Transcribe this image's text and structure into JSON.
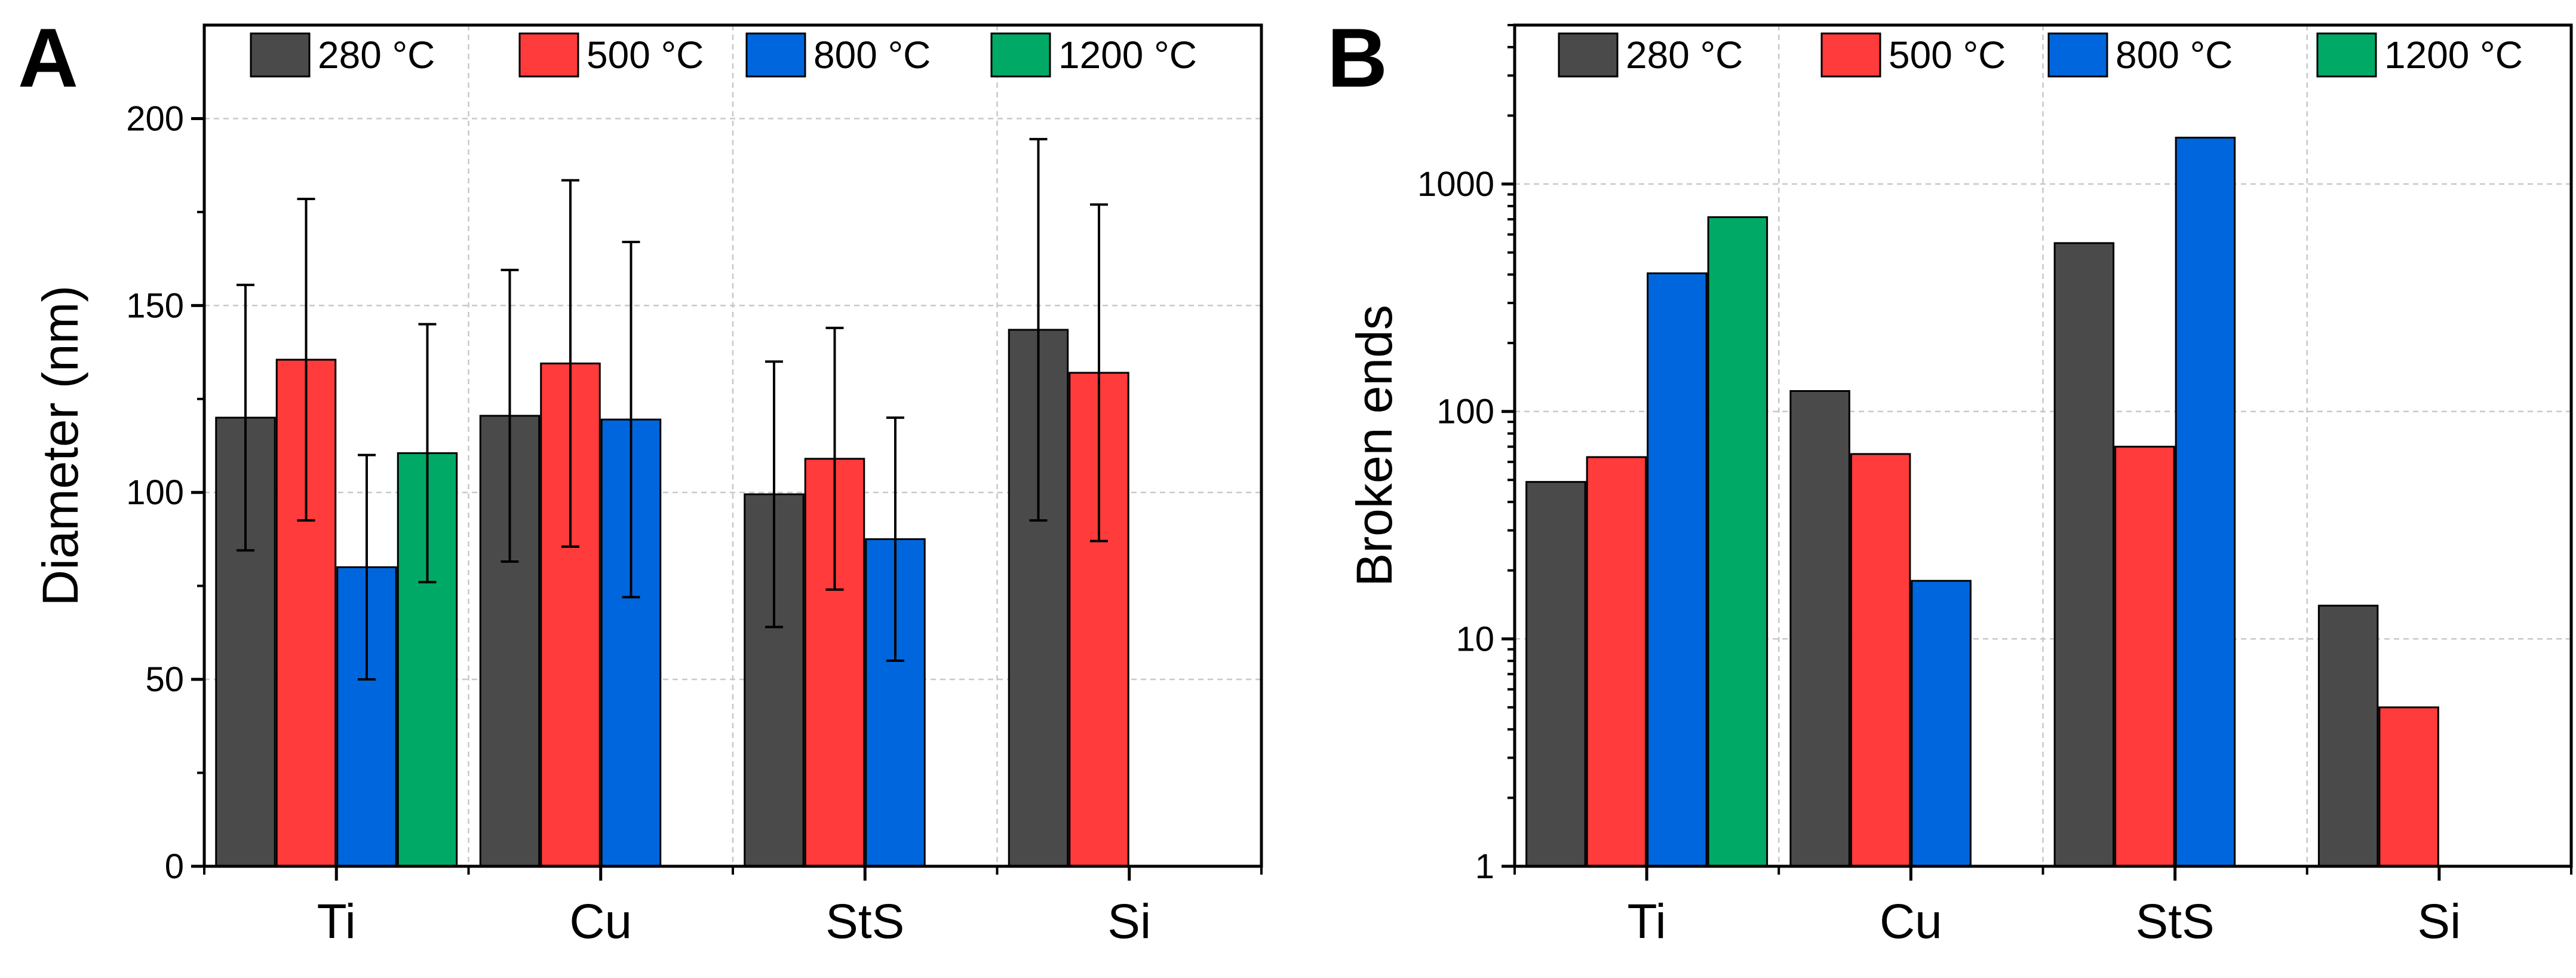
{
  "chart_data": [
    {
      "panel": "A",
      "type": "bar",
      "scale": "linear",
      "title": "",
      "xlabel": "",
      "ylabel": "Diameter (nm)",
      "ylim": [
        0,
        225
      ],
      "yticks": [
        0,
        50,
        100,
        150,
        200
      ],
      "grid": true,
      "legend_position": "top",
      "categories": [
        "Ti",
        "Cu",
        "StS",
        "Si"
      ],
      "series": [
        {
          "name": "280 °C",
          "color": "#4a4a4a",
          "values": [
            120,
            120.5,
            99.5,
            143.5
          ],
          "errors": [
            35.5,
            39,
            35.5,
            51
          ]
        },
        {
          "name": "500 °C",
          "color": "#ff3b3b",
          "values": [
            135.5,
            134.5,
            109,
            132
          ],
          "errors": [
            43,
            49,
            35,
            45
          ]
        },
        {
          "name": "800 °C",
          "color": "#0066dd",
          "values": [
            80,
            119.5,
            87.5,
            null
          ],
          "errors": [
            30,
            47.5,
            32.5,
            null
          ]
        },
        {
          "name": "1200 °C",
          "color": "#00aa66",
          "values": [
            110.5,
            null,
            null,
            null
          ],
          "errors": [
            34.5,
            null,
            null,
            null
          ]
        }
      ]
    },
    {
      "panel": "B",
      "type": "bar",
      "scale": "log",
      "title": "",
      "xlabel": "",
      "ylabel": "Broken ends",
      "ylim": [
        1,
        5000
      ],
      "yticks": [
        1,
        10,
        100,
        1000
      ],
      "yticklabels": [
        "1",
        "10",
        "100",
        "1000"
      ],
      "grid": true,
      "legend_position": "top",
      "categories": [
        "Ti",
        "Cu",
        "StS",
        "Si"
      ],
      "series": [
        {
          "name": "280 °C",
          "color": "#4a4a4a",
          "values": [
            49,
            123,
            550,
            14
          ]
        },
        {
          "name": "500 °C",
          "color": "#ff3b3b",
          "values": [
            63,
            65,
            70,
            5
          ]
        },
        {
          "name": "800 °C",
          "color": "#0066dd",
          "values": [
            405,
            18,
            1600,
            null
          ]
        },
        {
          "name": "1200 °C",
          "color": "#00aa66",
          "values": [
            715,
            null,
            null,
            null
          ]
        }
      ]
    }
  ]
}
